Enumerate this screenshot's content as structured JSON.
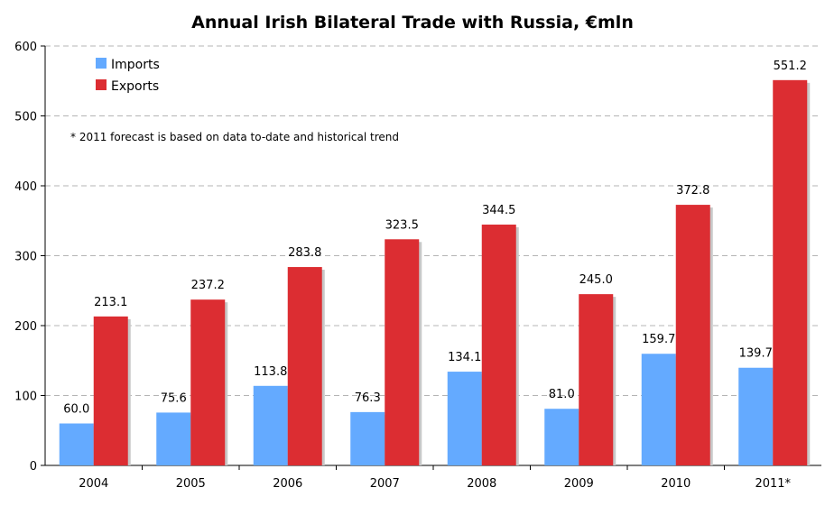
{
  "chart_data": {
    "type": "bar",
    "title": "Annual Irish Bilateral Trade with Russia, €mln",
    "categories": [
      "2004",
      "2005",
      "2006",
      "2007",
      "2008",
      "2009",
      "2010",
      "2011*"
    ],
    "series": [
      {
        "name": "Imports",
        "color": "#64aaff",
        "values": [
          60.0,
          75.6,
          113.8,
          76.3,
          134.1,
          81.0,
          159.7,
          139.7
        ],
        "labels": [
          "60.0",
          "75.6",
          "113.8",
          "76.3",
          "134.1",
          "81.0",
          "159.7",
          "139.7"
        ]
      },
      {
        "name": "Exports",
        "color": "#dc2d32",
        "values": [
          213.1,
          237.2,
          283.8,
          323.5,
          344.5,
          245.0,
          372.8,
          551.2
        ],
        "labels": [
          "213.1",
          "237.2",
          "283.8",
          "323.5",
          "344.5",
          "245.0",
          "372.8",
          "551.2"
        ]
      }
    ],
    "ylim": [
      0,
      600
    ],
    "yticks": [
      "0",
      "100",
      "200",
      "300",
      "400",
      "500",
      "600"
    ],
    "grid": true,
    "legend": "top-left",
    "annotation": "* 2011 forecast is based on data to-date and historical trend"
  }
}
